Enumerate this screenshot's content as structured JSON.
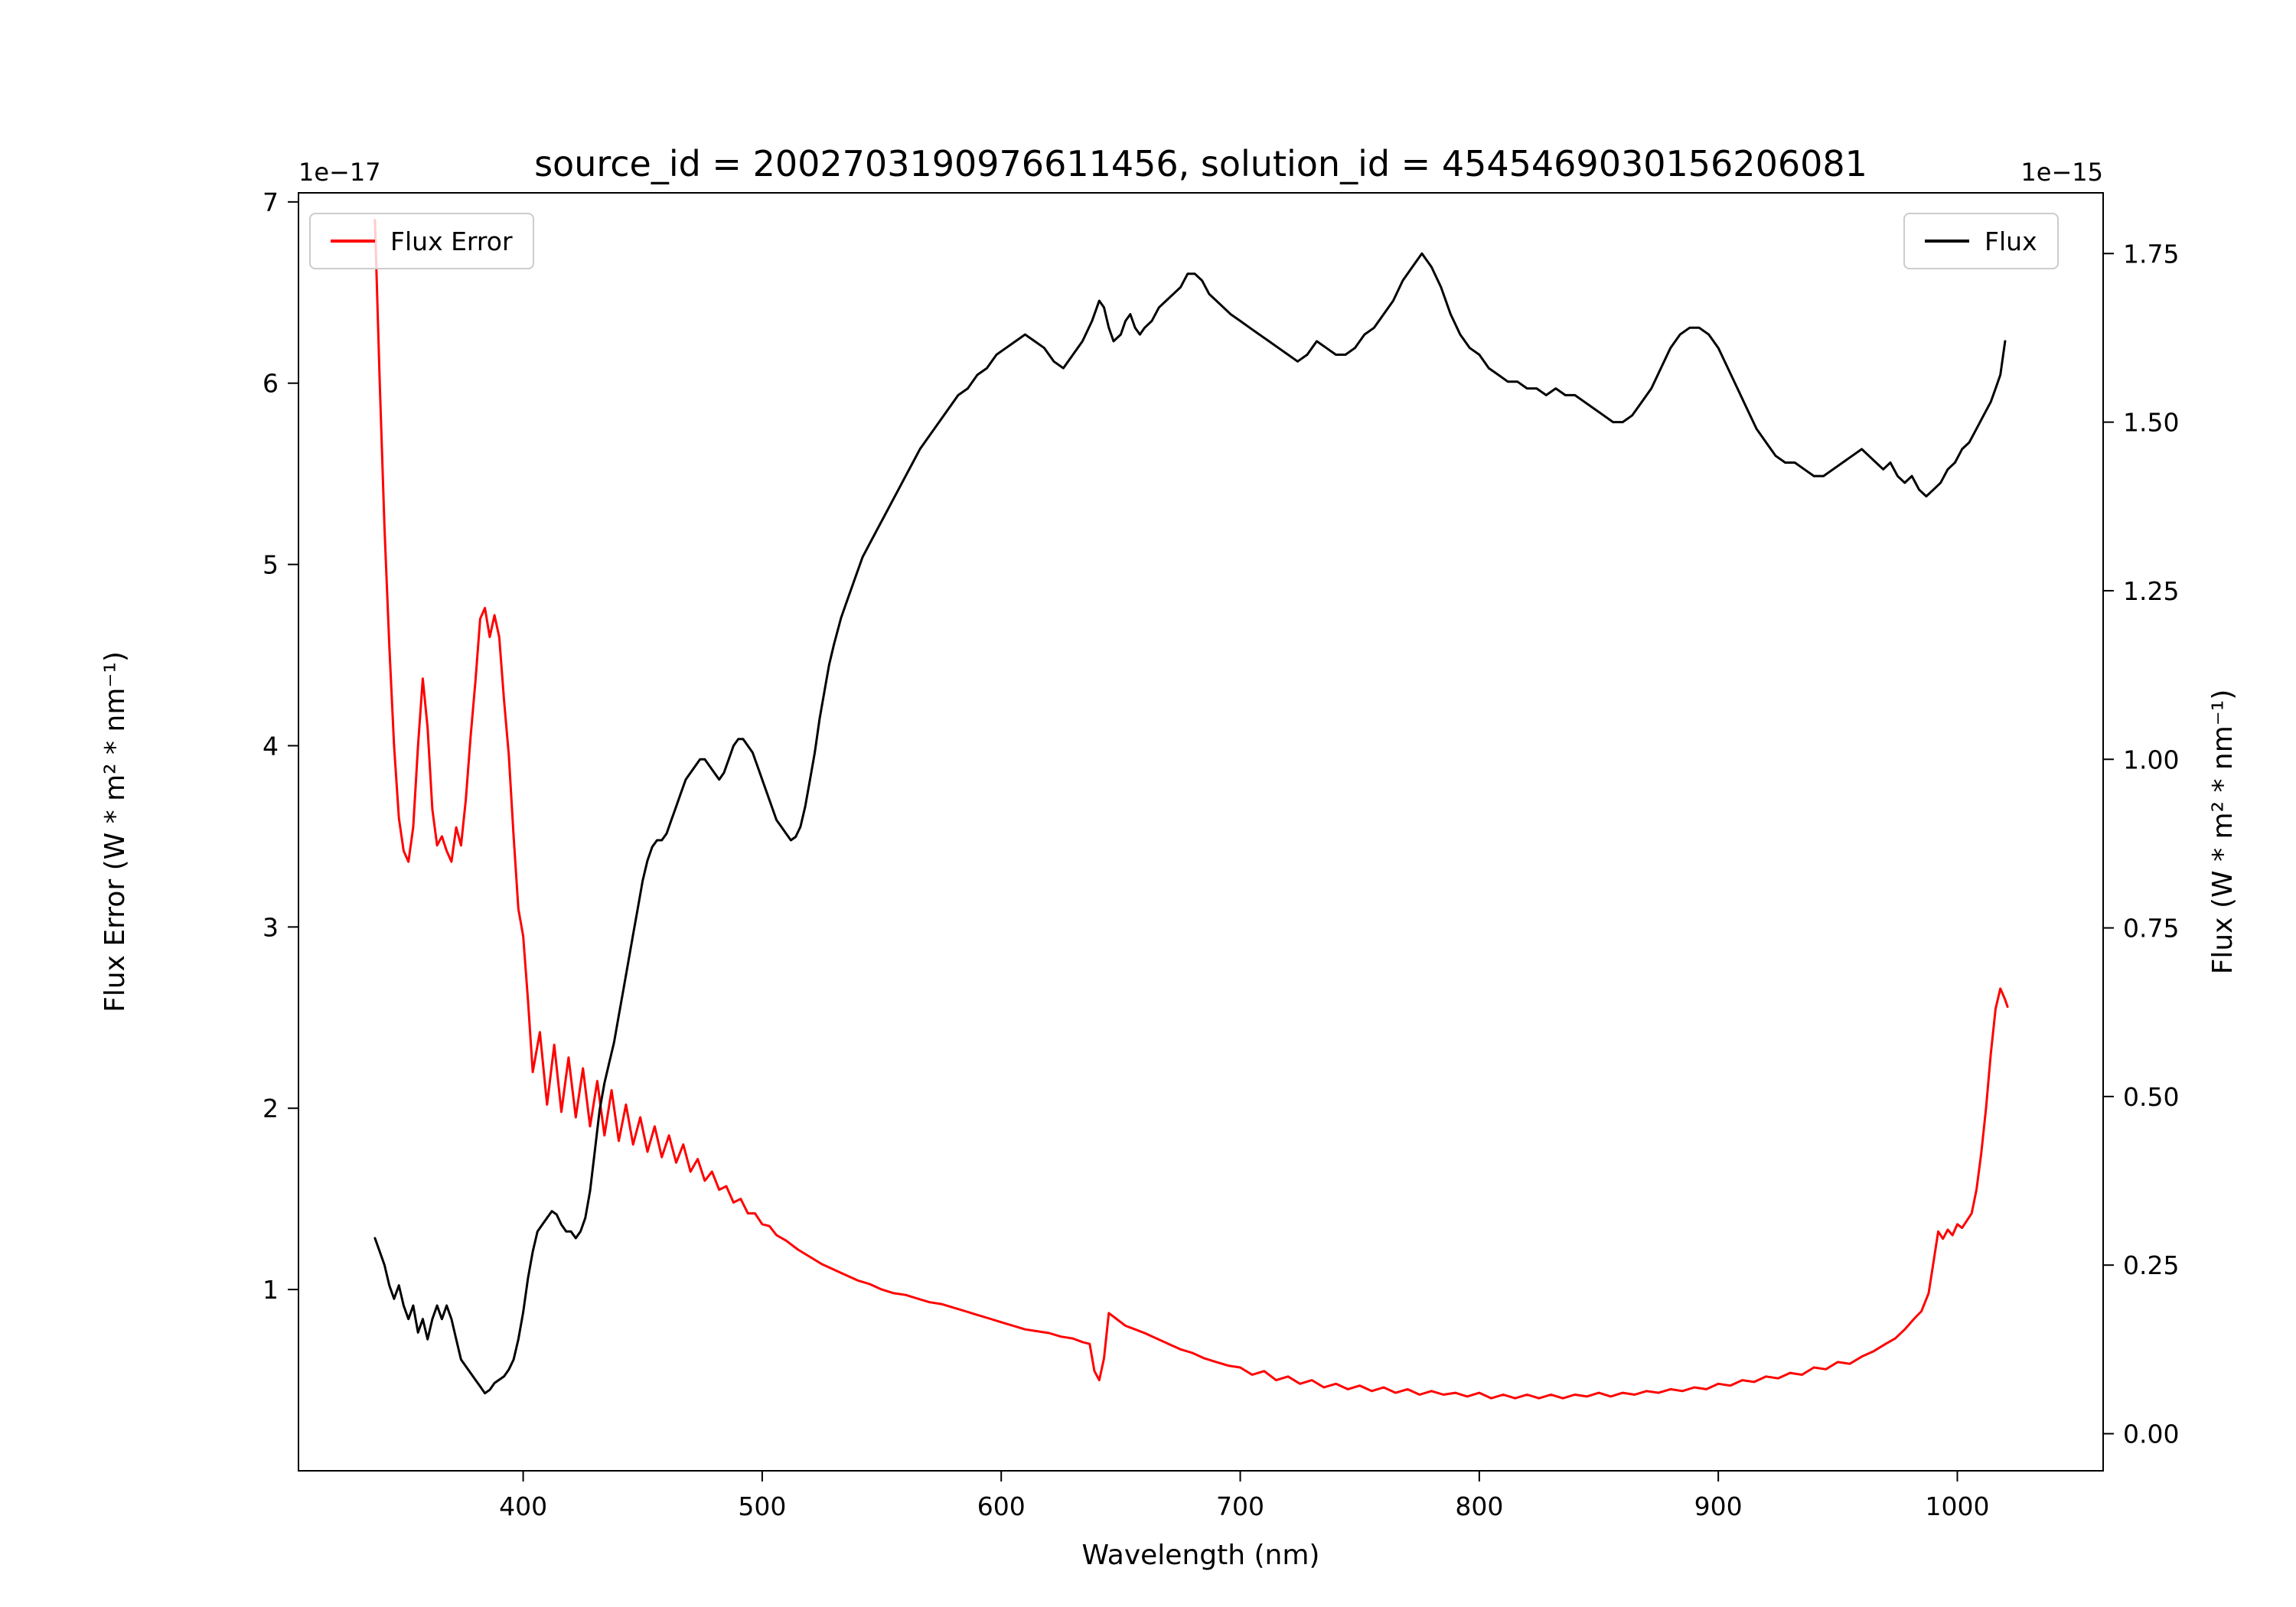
{
  "chart_data": {
    "type": "line",
    "title": "source_id = 2002703190976611456, solution_id = 45454690301562​06081",
    "xlabel": "Wavelength (nm)",
    "xlim": [
      306,
      1061
    ],
    "x_ticks": [
      400,
      500,
      600,
      700,
      800,
      900,
      1000
    ],
    "grid": false,
    "left_axis": {
      "label": "Flux Error (W * m² * nm⁻¹)",
      "color": "#ff0000",
      "offset_text": "1e−17",
      "ylim": [
        0,
        7.05
      ],
      "ticks": [
        1,
        2,
        3,
        4,
        5,
        6,
        7
      ]
    },
    "right_axis": {
      "label": "Flux (W * m² * nm⁻¹)",
      "color": "#000000",
      "offset_text": "1e−15",
      "ylim": [
        -0.055,
        1.84
      ],
      "ticks": [
        "0.00",
        "0.25",
        "0.50",
        "0.75",
        "1.00",
        "1.25",
        "1.50",
        "1.75"
      ]
    },
    "legends": [
      {
        "label": "Flux Error",
        "color": "#ff0000",
        "position": "upper-left"
      },
      {
        "label": "Flux",
        "color": "#000000",
        "position": "upper-right"
      }
    ],
    "series": [
      {
        "name": "Flux Error",
        "axis": "left",
        "color": "#ff0000",
        "units": "1e-17 W * m^2 * nm^-1",
        "x": [
          338,
          340,
          342,
          344,
          346,
          348,
          350,
          352,
          354,
          356,
          358,
          360,
          362,
          364,
          366,
          368,
          370,
          372,
          374,
          376,
          378,
          380,
          382,
          384,
          386,
          388,
          390,
          392,
          394,
          396,
          398,
          400,
          402,
          404,
          407,
          410,
          413,
          416,
          419,
          422,
          425,
          428,
          431,
          434,
          437,
          440,
          443,
          446,
          449,
          452,
          455,
          458,
          461,
          464,
          467,
          470,
          473,
          476,
          479,
          482,
          485,
          488,
          491,
          494,
          497,
          500,
          503,
          506,
          510,
          515,
          520,
          525,
          530,
          535,
          540,
          545,
          550,
          555,
          560,
          565,
          570,
          575,
          580,
          585,
          590,
          595,
          600,
          605,
          610,
          615,
          620,
          625,
          630,
          634,
          637,
          639,
          641,
          643,
          645,
          648,
          652,
          656,
          660,
          665,
          670,
          675,
          680,
          685,
          690,
          695,
          700,
          705,
          710,
          715,
          720,
          725,
          730,
          735,
          740,
          745,
          750,
          755,
          760,
          765,
          770,
          775,
          780,
          785,
          790,
          795,
          800,
          805,
          810,
          815,
          820,
          825,
          830,
          835,
          840,
          845,
          850,
          855,
          860,
          865,
          870,
          875,
          880,
          885,
          890,
          895,
          900,
          905,
          910,
          915,
          920,
          925,
          930,
          935,
          940,
          945,
          950,
          955,
          960,
          965,
          970,
          974,
          978,
          982,
          985,
          988,
          990,
          992,
          994,
          996,
          998,
          1000,
          1002,
          1004,
          1006,
          1008,
          1010,
          1012,
          1014,
          1016,
          1018,
          1020,
          1021
        ],
        "y": [
          6.9,
          6.0,
          5.2,
          4.55,
          4.0,
          3.6,
          3.42,
          3.36,
          3.55,
          4.0,
          4.37,
          4.1,
          3.65,
          3.45,
          3.5,
          3.42,
          3.36,
          3.55,
          3.45,
          3.7,
          4.05,
          4.35,
          4.7,
          4.76,
          4.6,
          4.72,
          4.6,
          4.25,
          3.95,
          3.5,
          3.1,
          2.95,
          2.6,
          2.2,
          2.42,
          2.02,
          2.35,
          1.98,
          2.28,
          1.95,
          2.22,
          1.9,
          2.15,
          1.85,
          2.1,
          1.82,
          2.02,
          1.8,
          1.95,
          1.76,
          1.9,
          1.73,
          1.85,
          1.7,
          1.8,
          1.65,
          1.72,
          1.6,
          1.65,
          1.55,
          1.57,
          1.48,
          1.5,
          1.42,
          1.42,
          1.36,
          1.35,
          1.3,
          1.27,
          1.22,
          1.18,
          1.14,
          1.11,
          1.08,
          1.05,
          1.03,
          1.0,
          0.98,
          0.97,
          0.95,
          0.93,
          0.92,
          0.9,
          0.88,
          0.86,
          0.84,
          0.82,
          0.8,
          0.78,
          0.77,
          0.76,
          0.74,
          0.73,
          0.71,
          0.7,
          0.55,
          0.5,
          0.62,
          0.87,
          0.84,
          0.8,
          0.78,
          0.76,
          0.73,
          0.7,
          0.67,
          0.65,
          0.62,
          0.6,
          0.58,
          0.57,
          0.53,
          0.55,
          0.5,
          0.52,
          0.48,
          0.5,
          0.46,
          0.48,
          0.45,
          0.47,
          0.44,
          0.46,
          0.43,
          0.45,
          0.42,
          0.44,
          0.42,
          0.43,
          0.41,
          0.43,
          0.4,
          0.42,
          0.4,
          0.42,
          0.4,
          0.42,
          0.4,
          0.42,
          0.41,
          0.43,
          0.41,
          0.43,
          0.42,
          0.44,
          0.43,
          0.45,
          0.44,
          0.46,
          0.45,
          0.48,
          0.47,
          0.5,
          0.49,
          0.52,
          0.51,
          0.54,
          0.53,
          0.57,
          0.56,
          0.6,
          0.59,
          0.63,
          0.66,
          0.7,
          0.73,
          0.78,
          0.84,
          0.88,
          0.98,
          1.15,
          1.32,
          1.28,
          1.33,
          1.3,
          1.36,
          1.34,
          1.38,
          1.42,
          1.55,
          1.75,
          2.0,
          2.3,
          2.55,
          2.66,
          2.6,
          2.56
        ]
      },
      {
        "name": "Flux",
        "axis": "right",
        "color": "#000000",
        "units": "1e-15 W * m^2 * nm^-1",
        "x": [
          338,
          340,
          342,
          344,
          346,
          348,
          350,
          352,
          354,
          356,
          358,
          360,
          362,
          364,
          366,
          368,
          370,
          372,
          374,
          376,
          378,
          380,
          382,
          384,
          386,
          388,
          390,
          392,
          394,
          396,
          398,
          400,
          402,
          404,
          406,
          408,
          410,
          412,
          414,
          416,
          418,
          420,
          422,
          424,
          426,
          428,
          430,
          432,
          434,
          436,
          438,
          440,
          442,
          444,
          446,
          448,
          450,
          452,
          454,
          456,
          458,
          460,
          462,
          464,
          466,
          468,
          470,
          472,
          474,
          476,
          478,
          480,
          482,
          484,
          486,
          488,
          490,
          492,
          494,
          496,
          498,
          500,
          502,
          504,
          506,
          508,
          510,
          512,
          514,
          516,
          518,
          520,
          522,
          524,
          526,
          528,
          530,
          533,
          536,
          539,
          542,
          545,
          548,
          551,
          554,
          557,
          560,
          563,
          566,
          570,
          574,
          578,
          582,
          586,
          590,
          594,
          598,
          602,
          606,
          610,
          614,
          618,
          622,
          626,
          630,
          634,
          638,
          641,
          643,
          645,
          647,
          650,
          652,
          654,
          656,
          658,
          660,
          663,
          666,
          669,
          672,
          675,
          678,
          681,
          684,
          687,
          690,
          693,
          696,
          700,
          704,
          708,
          712,
          716,
          720,
          724,
          728,
          732,
          736,
          740,
          744,
          748,
          752,
          756,
          760,
          764,
          768,
          772,
          776,
          780,
          784,
          788,
          792,
          796,
          800,
          804,
          808,
          812,
          816,
          820,
          824,
          828,
          832,
          836,
          840,
          844,
          848,
          852,
          856,
          860,
          864,
          868,
          872,
          876,
          880,
          884,
          888,
          892,
          896,
          900,
          904,
          908,
          912,
          916,
          920,
          924,
          928,
          932,
          936,
          940,
          944,
          948,
          952,
          956,
          960,
          963,
          966,
          969,
          972,
          975,
          978,
          981,
          984,
          987,
          990,
          993,
          996,
          999,
          1002,
          1005,
          1008,
          1011,
          1014,
          1016,
          1018,
          1020
        ],
        "y": [
          0.29,
          0.27,
          0.25,
          0.22,
          0.2,
          0.22,
          0.19,
          0.17,
          0.19,
          0.15,
          0.17,
          0.14,
          0.17,
          0.19,
          0.17,
          0.19,
          0.17,
          0.14,
          0.11,
          0.1,
          0.09,
          0.08,
          0.07,
          0.06,
          0.065,
          0.075,
          0.08,
          0.085,
          0.095,
          0.11,
          0.14,
          0.18,
          0.23,
          0.27,
          0.3,
          0.31,
          0.32,
          0.33,
          0.325,
          0.31,
          0.3,
          0.3,
          0.29,
          0.3,
          0.32,
          0.36,
          0.42,
          0.48,
          0.52,
          0.55,
          0.58,
          0.62,
          0.66,
          0.7,
          0.74,
          0.78,
          0.82,
          0.85,
          0.87,
          0.88,
          0.88,
          0.89,
          0.91,
          0.93,
          0.95,
          0.97,
          0.98,
          0.99,
          1.0,
          1.0,
          0.99,
          0.98,
          0.97,
          0.98,
          1.0,
          1.02,
          1.03,
          1.03,
          1.02,
          1.01,
          0.99,
          0.97,
          0.95,
          0.93,
          0.91,
          0.9,
          0.89,
          0.88,
          0.885,
          0.9,
          0.93,
          0.97,
          1.01,
          1.06,
          1.1,
          1.14,
          1.17,
          1.21,
          1.24,
          1.27,
          1.3,
          1.32,
          1.34,
          1.36,
          1.38,
          1.4,
          1.42,
          1.44,
          1.46,
          1.48,
          1.5,
          1.52,
          1.54,
          1.55,
          1.57,
          1.58,
          1.6,
          1.61,
          1.62,
          1.63,
          1.62,
          1.61,
          1.59,
          1.58,
          1.6,
          1.62,
          1.65,
          1.68,
          1.67,
          1.64,
          1.62,
          1.63,
          1.65,
          1.66,
          1.64,
          1.63,
          1.64,
          1.65,
          1.67,
          1.68,
          1.69,
          1.7,
          1.72,
          1.72,
          1.71,
          1.69,
          1.68,
          1.67,
          1.66,
          1.65,
          1.64,
          1.63,
          1.62,
          1.61,
          1.6,
          1.59,
          1.6,
          1.62,
          1.61,
          1.6,
          1.6,
          1.61,
          1.63,
          1.64,
          1.66,
          1.68,
          1.71,
          1.73,
          1.75,
          1.73,
          1.7,
          1.66,
          1.63,
          1.61,
          1.6,
          1.58,
          1.57,
          1.56,
          1.56,
          1.55,
          1.55,
          1.54,
          1.55,
          1.54,
          1.54,
          1.53,
          1.52,
          1.51,
          1.5,
          1.5,
          1.51,
          1.53,
          1.55,
          1.58,
          1.61,
          1.63,
          1.64,
          1.64,
          1.63,
          1.61,
          1.58,
          1.55,
          1.52,
          1.49,
          1.47,
          1.45,
          1.44,
          1.44,
          1.43,
          1.42,
          1.42,
          1.43,
          1.44,
          1.45,
          1.46,
          1.45,
          1.44,
          1.43,
          1.44,
          1.42,
          1.41,
          1.42,
          1.4,
          1.39,
          1.4,
          1.41,
          1.43,
          1.44,
          1.46,
          1.47,
          1.49,
          1.51,
          1.53,
          1.55,
          1.57,
          1.62
        ]
      }
    ]
  }
}
